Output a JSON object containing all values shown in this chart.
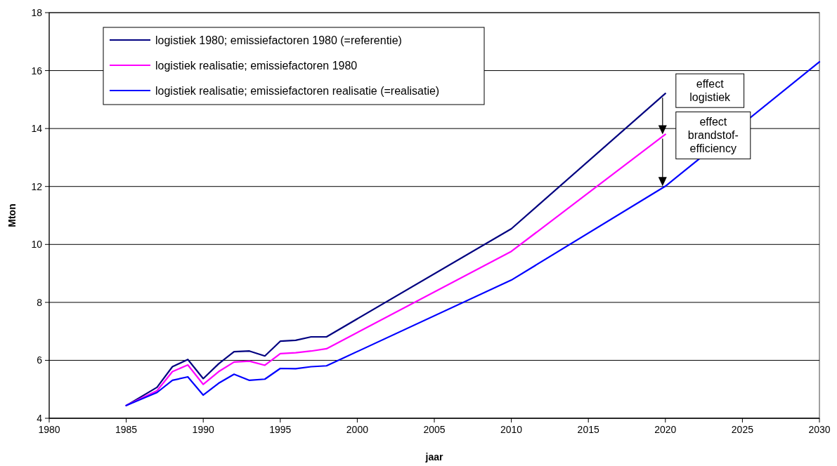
{
  "chart_data": {
    "type": "line",
    "xlabel": "jaar",
    "ylabel": "Mton",
    "xlim": [
      1980,
      2030
    ],
    "xticks": [
      1980,
      1985,
      1990,
      1995,
      2000,
      2005,
      2010,
      2015,
      2020,
      2025,
      2030
    ],
    "ylim": [
      4,
      18
    ],
    "yticks": [
      4,
      6,
      8,
      10,
      12,
      14,
      16,
      18
    ],
    "grid": "y",
    "legend": "top left",
    "marker": "none",
    "line_style": "solid",
    "series": [
      {
        "name": "logistiek 1980; emissiefactoren 1980 (=referentie)",
        "color": "#000080",
        "x": [
          1985,
          1987,
          1988,
          1989,
          1990,
          1991,
          1992,
          1993,
          1994,
          1995,
          1996,
          1997,
          1998,
          2010,
          2020
        ],
        "values": [
          4.44,
          5.07,
          5.78,
          6.03,
          5.37,
          5.88,
          6.3,
          6.32,
          6.15,
          6.66,
          6.69,
          6.81,
          6.81,
          10.54,
          15.21
        ]
      },
      {
        "name": "logistiek realisatie; emissiefactoren 1980",
        "color": "#ff00ff",
        "x": [
          1985,
          1987,
          1988,
          1989,
          1990,
          1991,
          1992,
          1993,
          1994,
          1995,
          1996,
          1997,
          1998,
          2010,
          2020
        ],
        "values": [
          4.44,
          4.95,
          5.61,
          5.84,
          5.17,
          5.61,
          5.94,
          5.97,
          5.83,
          6.23,
          6.26,
          6.32,
          6.4,
          9.76,
          13.8
        ]
      },
      {
        "name": "logistiek realisatie; emissiefactoren realisatie (=realisatie)",
        "color": "#0000ff",
        "x": [
          1985,
          1987,
          1988,
          1989,
          1990,
          1991,
          1992,
          1993,
          1994,
          1995,
          1996,
          1997,
          1998,
          2010,
          2020,
          2030
        ],
        "values": [
          4.44,
          4.89,
          5.31,
          5.43,
          4.8,
          5.21,
          5.52,
          5.31,
          5.35,
          5.72,
          5.71,
          5.78,
          5.81,
          8.77,
          12.01,
          16.3
        ]
      }
    ],
    "annotations": [
      {
        "text": "effect\nlogistiek",
        "x": 2020,
        "y": 15.21
      },
      {
        "text": "effect\nbrandstof-\nefficiency",
        "x": 2020,
        "y": 13.8
      }
    ]
  }
}
